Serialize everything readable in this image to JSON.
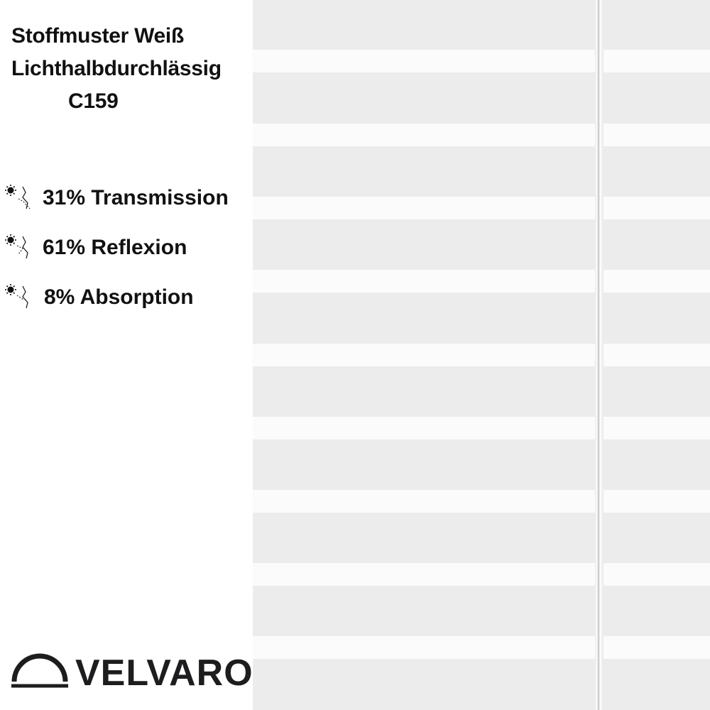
{
  "title": {
    "line1": "Stoffmuster Weiß",
    "line2": "Lichthalbdurchlässig",
    "code": "C159"
  },
  "stats": [
    {
      "icon": "sun-transmission-icon",
      "text": "31% Transmission"
    },
    {
      "icon": "sun-reflection-icon",
      "text": "61% Reflexion"
    },
    {
      "icon": "sun-absorption-icon",
      "text": "8% Absorption"
    }
  ],
  "brand": {
    "name": "VELVARO",
    "icon": "dome-logo-icon"
  },
  "fabric": {
    "description_color_stripe": "#fbfbfb",
    "description_color_band": "#e7e7e7"
  }
}
